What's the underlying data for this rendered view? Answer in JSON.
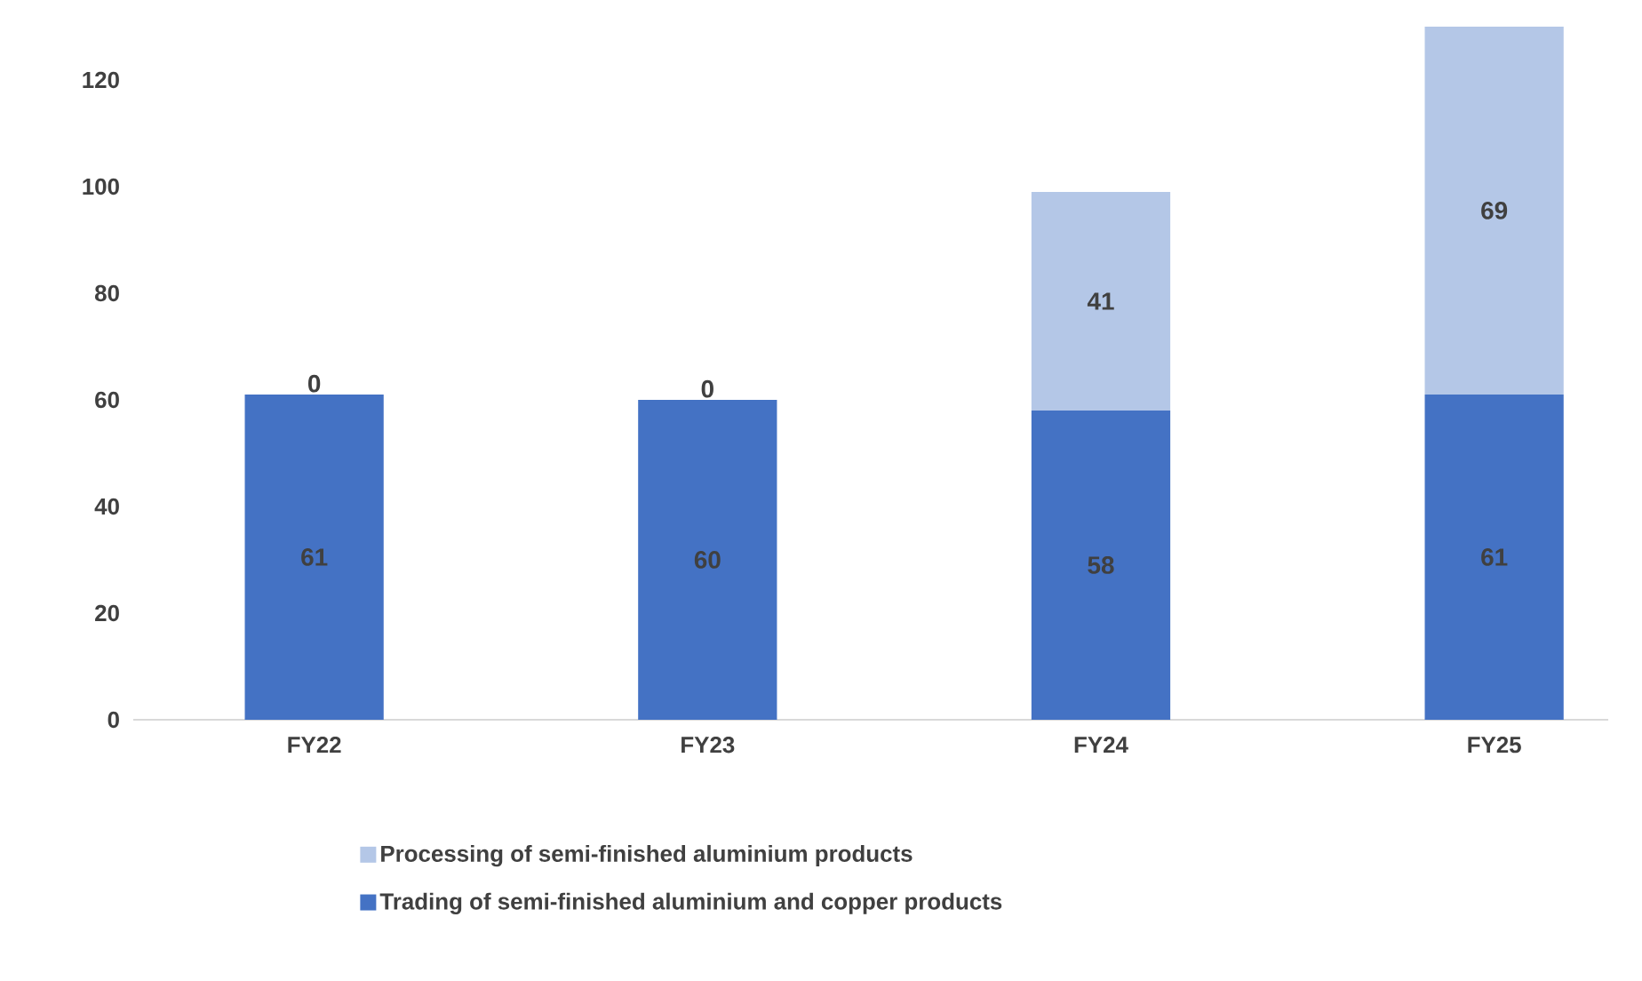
{
  "chart_data": {
    "type": "bar",
    "stacked": true,
    "categories": [
      "FY22",
      "FY23",
      "FY24",
      "FY25"
    ],
    "series": [
      {
        "name": "Trading of semi-finished aluminium and copper products",
        "color": "#4472c4",
        "values": [
          61,
          60,
          58,
          61
        ]
      },
      {
        "name": "Processing of semi-finished aluminium products",
        "color": "#b4c7e7",
        "values": [
          0,
          0,
          41,
          69
        ]
      }
    ],
    "ylim": [
      0,
      130
    ],
    "yticks": [
      0,
      20,
      40,
      60,
      80,
      100,
      120
    ],
    "data_labels": true,
    "legend": "bottom"
  }
}
